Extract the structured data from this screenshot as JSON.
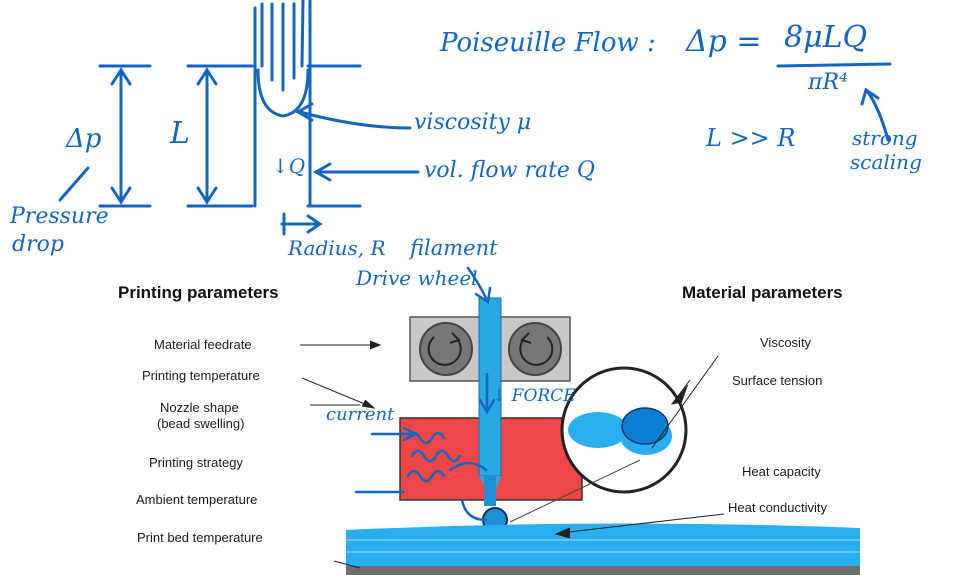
{
  "colors": {
    "ink": "#1565c0",
    "filament": "#27a9e1",
    "filament_dark": "#0d7fd0",
    "heater": "#ef4747",
    "gear_box": "#c8c8c8",
    "gear": "#777777",
    "bed": "#29aef0",
    "plate": "#6e6e6e"
  },
  "icons": [
    "drive-wheel-icon",
    "circular-arrow-icon"
  ],
  "handwritten": {
    "poiseuille_label": "Poiseuille Flow :",
    "formula_lhs": "Δp =",
    "formula_num": "8μLQ",
    "formula_den": "πR⁴",
    "condition": "L >> R",
    "strong_scaling": [
      "strong",
      "scaling"
    ],
    "delta_p": "Δp",
    "length": "L",
    "viscosity": "viscosity μ",
    "flow_rate": "vol. flow rate Q",
    "q_mark": "↓Q",
    "pressure_drop": [
      "Pressure",
      "drop"
    ],
    "radius": "Radius, R",
    "filament": "filament",
    "drive_wheel": "Drive wheel",
    "force": "↓ FORCE",
    "current": "current"
  },
  "printing": {
    "heading": "Printing parameters",
    "items": [
      "Material feedrate",
      "Printing temperature",
      "Nozzle shape",
      "(bead swelling)",
      "Printing strategy",
      "Ambient temperature",
      "Print bed temperature"
    ]
  },
  "material": {
    "heading": "Material parameters",
    "items": [
      "Viscosity",
      "Surface tension",
      "Heat capacity",
      "Heat conductivity"
    ]
  }
}
